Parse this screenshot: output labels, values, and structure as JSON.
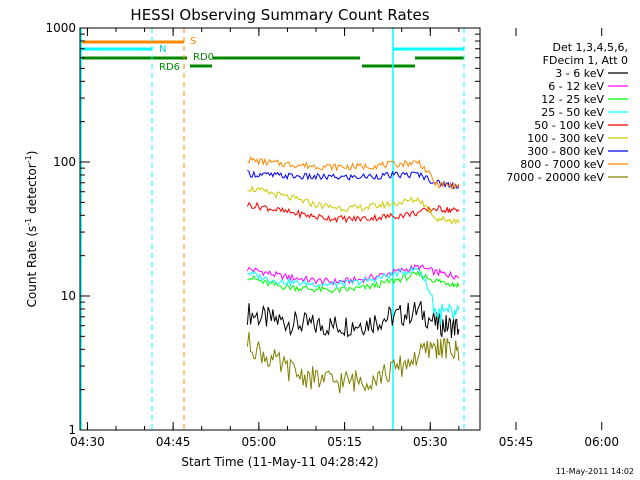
{
  "chart_data": {
    "type": "line",
    "title": "HESSI Observing Summary Count Rates",
    "xlabel": "Start Time (11-May-11 04:28:42)",
    "ylabel_main": "Count Rate (s",
    "ylabel_sup1": "-1",
    "ylabel_mid": " detector",
    "ylabel_sup2": "-1",
    "ylabel_end": ")",
    "ylog": true,
    "xlim": [
      28.7,
      98.7
    ],
    "ylim": [
      1,
      1000
    ],
    "xticks": [
      {
        "minutes": 30,
        "label": "04:30"
      },
      {
        "minutes": 45,
        "label": "04:45"
      },
      {
        "minutes": 60,
        "label": "05:00"
      },
      {
        "minutes": 75,
        "label": "05:15"
      },
      {
        "minutes": 90,
        "label": "05:30"
      },
      {
        "minutes": 105,
        "label": "05:45"
      },
      {
        "minutes": 120,
        "label": "06:00"
      }
    ],
    "yticks": [
      {
        "value": 1,
        "label": "1"
      },
      {
        "value": 10,
        "label": "10"
      },
      {
        "value": 100,
        "label": "100"
      },
      {
        "value": 1000,
        "label": "1000"
      }
    ],
    "legend": {
      "placement": "right",
      "header1": "Det 1,3,4,5,6,",
      "header2": "FDecim 1, Att 0"
    },
    "series": [
      {
        "name": "3 - 6 keV",
        "color": "#000000",
        "values": [
          7.5,
          6.8,
          6.5,
          6.2,
          6.0,
          6.0,
          6.1,
          6.3,
          6.8,
          7.2,
          7.8,
          6.2,
          6.0,
          5.8
        ]
      },
      {
        "name": "6 - 12 keV",
        "color": "#ff00ff",
        "values": [
          16,
          15,
          14,
          13.5,
          13,
          12.8,
          13,
          13.5,
          14.5,
          15.5,
          16.5,
          15,
          14.5,
          14
        ]
      },
      {
        "name": "12 - 25 keV",
        "color": "#00ff00",
        "values": [
          14,
          12.5,
          11.8,
          11.5,
          11.2,
          11,
          11.2,
          11.6,
          12.5,
          13.5,
          14.5,
          13,
          12.6,
          12
        ]
      },
      {
        "name": "25 - 50 keV",
        "color": "#00ffff",
        "values": [
          15,
          13.5,
          12.8,
          12.5,
          12.3,
          12.2,
          12.5,
          13,
          14,
          15,
          16,
          7.5,
          7.2,
          7
        ]
      },
      {
        "name": "50 - 100 keV",
        "color": "#ff0000",
        "values": [
          48,
          46,
          43,
          41,
          39,
          38,
          37.5,
          38,
          39,
          40,
          42,
          45,
          44,
          43
        ]
      },
      {
        "name": "100 - 300 keV",
        "color": "#cccc00",
        "values": [
          64,
          60,
          56,
          52,
          48,
          46,
          45,
          46,
          48,
          50,
          53,
          38,
          37,
          36
        ]
      },
      {
        "name": "300 - 800 keV",
        "color": "#0000ff",
        "values": [
          82,
          80,
          79,
          78,
          77,
          77,
          77,
          78,
          79,
          80,
          81,
          70,
          68,
          66
        ]
      },
      {
        "name": "800 - 7000 keV",
        "color": "#ff8800",
        "values": [
          104,
          100,
          97,
          95,
          93,
          92,
          92,
          93,
          95,
          97,
          100,
          68,
          67,
          66
        ]
      },
      {
        "name": "7000 - 20000 keV",
        "color": "#808000",
        "values": [
          4.5,
          3.6,
          3.0,
          2.6,
          2.4,
          2.3,
          2.3,
          2.4,
          2.6,
          3.0,
          3.6,
          4.2,
          4.0,
          3.8
        ]
      }
    ],
    "sample_minutes": [
      58,
      61,
      64,
      67,
      70,
      73,
      76,
      79,
      82,
      85,
      88,
      91,
      93,
      95
    ],
    "annotations": {
      "S_label": "S",
      "N_label": "N",
      "RD0_label": "RD0",
      "RD6_label": "RD6"
    },
    "footer_date": "11-May-2011 14:02",
    "colors": {
      "axis": "#000000",
      "saa": "#ff8800",
      "night": "#00ffff",
      "rd": "#008800"
    }
  }
}
